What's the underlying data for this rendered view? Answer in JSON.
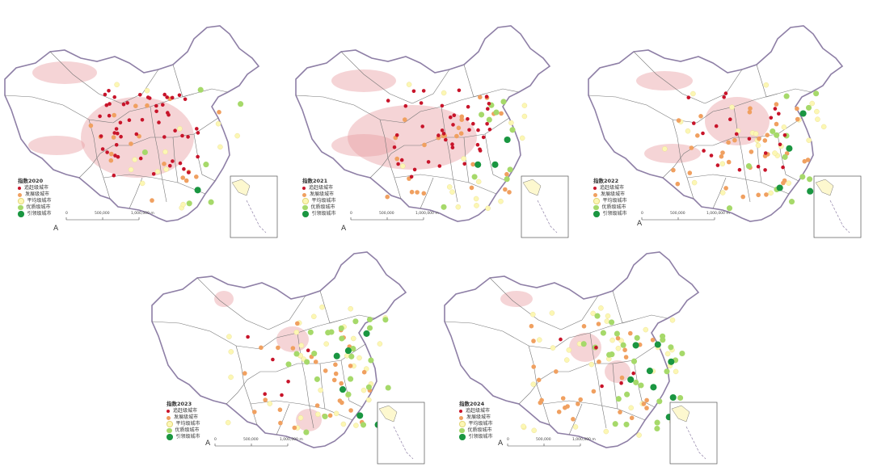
{
  "map": {
    "legend_categories": [
      {
        "key": "low",
        "label": "追赶级城市",
        "color": "#c8142a",
        "size": 3
      },
      {
        "key": "dev",
        "label": "发展级城市",
        "color": "#f0a060",
        "size": 4
      },
      {
        "key": "avg",
        "label": "平均级城市",
        "color": "#fcf7b4",
        "size": 4.5
      },
      {
        "key": "good",
        "label": "优质级城市",
        "color": "#a6d96a",
        "size": 5.5
      },
      {
        "key": "lead",
        "label": "引领级城市",
        "color": "#1a9641",
        "size": 6.5
      }
    ],
    "scale_labels": [
      "0",
      "500,000",
      "1,000,000 m"
    ],
    "north_symbol": "A",
    "panels": [
      {
        "title": "指数2020",
        "low": 52,
        "dev": 18,
        "avg": 14,
        "good": 6,
        "lead": 1
      },
      {
        "title": "指数2021",
        "low": 40,
        "dev": 26,
        "avg": 16,
        "good": 10,
        "lead": 3
      },
      {
        "title": "指数2022",
        "low": 22,
        "dev": 34,
        "avg": 26,
        "good": 14,
        "lead": 4
      },
      {
        "title": "指数2023",
        "low": 6,
        "dev": 30,
        "avg": 34,
        "good": 24,
        "lead": 6
      },
      {
        "title": "指数2024",
        "low": 5,
        "dev": 30,
        "avg": 34,
        "good": 28,
        "lead": 8
      }
    ]
  }
}
